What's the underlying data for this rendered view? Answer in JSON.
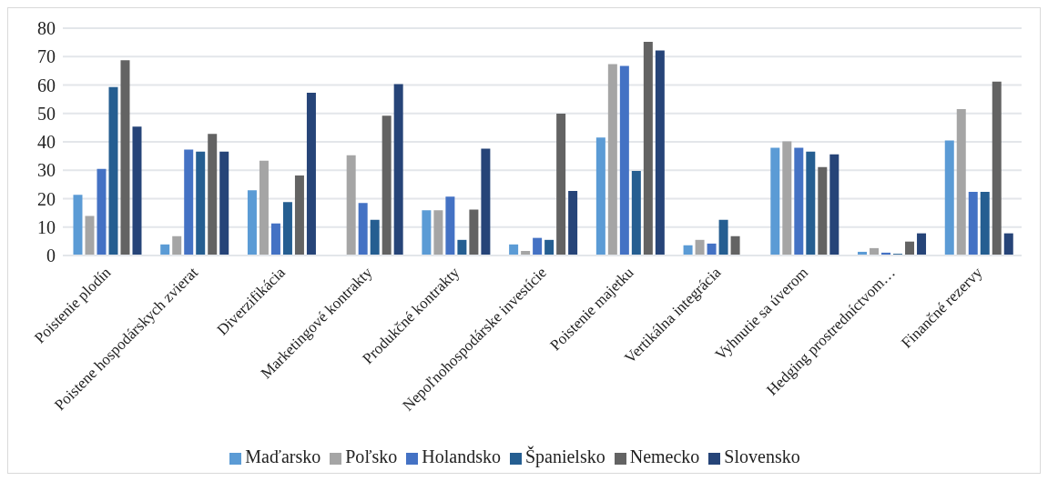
{
  "chart_data": {
    "type": "bar",
    "categories": [
      "Poistenie plodín",
      "Poistene hospodárskych zvierat",
      "Diverzifikácia",
      "Marketingové kontrakty",
      "Produkčné kontrakty",
      "Nepoľnohospodárske investície",
      "Poistenie majetku",
      "Vertikálna integrácia",
      "Vyhnutie sa úverom",
      "Hedging prostredníctvom…",
      "Finančné rezervy"
    ],
    "series": [
      {
        "name": "Maďarsko",
        "color": "#5b9bd5",
        "values": [
          21.4,
          3.9,
          23.0,
          null,
          15.9,
          3.9,
          41.5,
          3.6,
          37.9,
          1.3,
          40.5
        ]
      },
      {
        "name": "Poľsko",
        "color": "#a5a5a5",
        "values": [
          13.9,
          6.8,
          33.4,
          35.3,
          15.9,
          1.6,
          67.4,
          5.5,
          40.2,
          2.6,
          51.5
        ]
      },
      {
        "name": "Holandsko",
        "color": "#4472c4",
        "values": [
          30.5,
          37.3,
          11.3,
          18.5,
          20.7,
          6.2,
          66.7,
          4.2,
          37.9,
          1.0,
          22.4
        ]
      },
      {
        "name": "Španielsko",
        "color": "#255e91",
        "values": [
          59.3,
          36.6,
          18.8,
          12.6,
          5.5,
          5.5,
          29.8,
          12.6,
          36.6,
          0.6,
          22.4
        ]
      },
      {
        "name": "Nemecko",
        "color": "#636363",
        "values": [
          68.7,
          42.8,
          28.2,
          49.2,
          16.2,
          49.9,
          75.2,
          6.8,
          31.1,
          4.9,
          61.2
        ]
      },
      {
        "name": "Slovensko",
        "color": "#264478",
        "values": [
          45.4,
          36.6,
          57.3,
          60.3,
          37.6,
          22.7,
          72.2,
          null,
          35.6,
          7.8,
          7.8
        ]
      }
    ],
    "ylim": [
      0,
      80
    ],
    "yticks": [
      0,
      10,
      20,
      30,
      40,
      50,
      60,
      70,
      80
    ],
    "grid": "y",
    "legend": "bottom"
  }
}
